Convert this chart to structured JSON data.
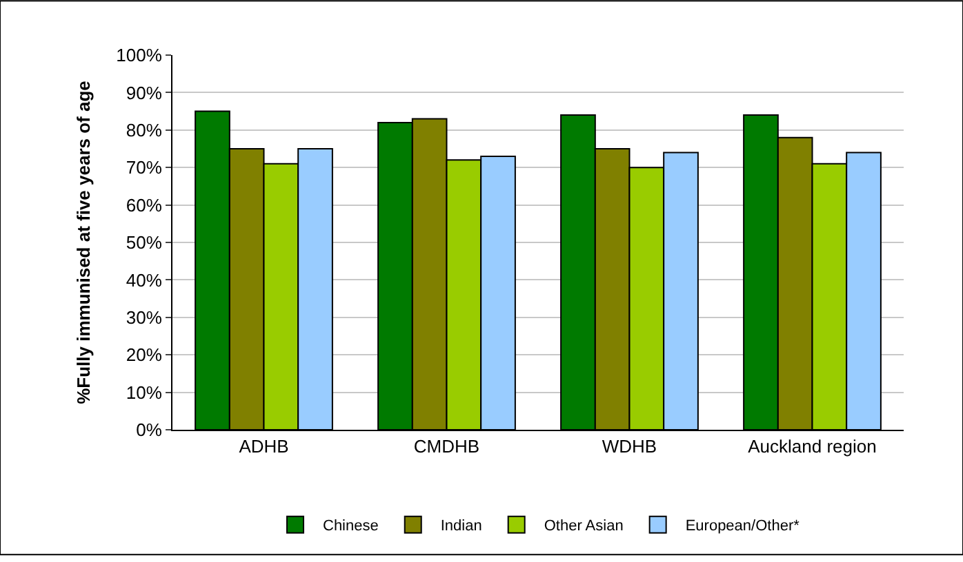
{
  "chart_data": {
    "type": "bar",
    "ylabel": "%Fully immunised at five years of age",
    "categories": [
      "ADHB",
      "CMDHB",
      "WDHB",
      "Auckland region"
    ],
    "series": [
      {
        "name": "Chinese",
        "color": "#007a00",
        "values": [
          85,
          82,
          84,
          84
        ]
      },
      {
        "name": "Indian",
        "color": "#808000",
        "values": [
          75,
          83,
          75,
          78
        ]
      },
      {
        "name": "Other Asian",
        "color": "#99cc00",
        "values": [
          71,
          72,
          70,
          71
        ]
      },
      {
        "name": "European/Other*",
        "color": "#99ccff",
        "values": [
          75,
          73,
          74,
          74
        ]
      }
    ],
    "ylim": [
      0,
      100
    ],
    "yticks": [
      {
        "value": 0,
        "label": "0%"
      },
      {
        "value": 10,
        "label": "10%"
      },
      {
        "value": 20,
        "label": "20%"
      },
      {
        "value": 30,
        "label": "30%"
      },
      {
        "value": 40,
        "label": "40%"
      },
      {
        "value": 50,
        "label": "50%"
      },
      {
        "value": 60,
        "label": "60%"
      },
      {
        "value": 70,
        "label": "70%"
      },
      {
        "value": 80,
        "label": "80%"
      },
      {
        "value": 90,
        "label": "90%"
      },
      {
        "value": 100,
        "label": "100%"
      }
    ],
    "grid": "y",
    "legend": "bottom"
  }
}
